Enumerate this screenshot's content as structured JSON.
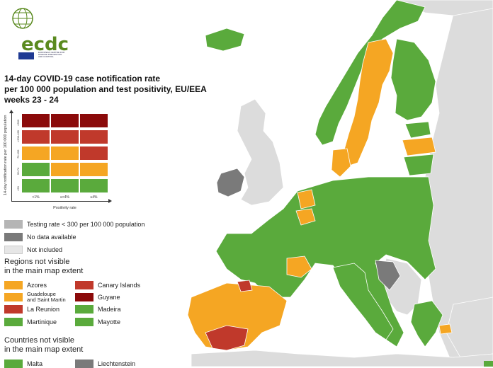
{
  "header": {
    "org": "ecdc",
    "org_sub": "EUROPEAN CENTRE FOR DISEASE PREVENTION AND CONTROL"
  },
  "title": {
    "line1": "14-day COVID-19 case notification rate",
    "line2": "per 100 000 population and test positivity, EU/EEA",
    "line3": "weeks 23 - 24"
  },
  "matrix": {
    "y_label": "14-day notification rate per 100 000 population",
    "y_ticks": [
      ">500",
      ">200-499",
      "75-199",
      "50-74",
      "<50"
    ],
    "x_ticks": [
      "<1%",
      "≥<4%",
      "≥4%"
    ],
    "x_label": "Positivity rate",
    "rows": [
      [
        "#8b0a0a",
        "#8b0a0a",
        "#8b0a0a"
      ],
      [
        "#c0392b",
        "#c0392b",
        "#c0392b"
      ],
      [
        "#f5a623",
        "#f5a623",
        "#c0392b"
      ],
      [
        "#5aaa3c",
        "#f5a623",
        "#f5a623"
      ],
      [
        "#5aaa3c",
        "#5aaa3c",
        "#5aaa3c"
      ]
    ]
  },
  "legend": {
    "testing_rate": "Testing rate < 300 per 100 000 population",
    "no_data": "No data available",
    "not_included": "Not included",
    "regions_head_1": "Regions not visible",
    "regions_head_2": "in the main map extent",
    "regions": [
      {
        "name": "Azores",
        "color": "#f5a623"
      },
      {
        "name": "Canary Islands",
        "color": "#c0392b"
      },
      {
        "name": "Guadeloupe",
        "name2": "and Saint Martin",
        "color": "#f5a623"
      },
      {
        "name": "Guyane",
        "color": "#8b0a0a"
      },
      {
        "name": "La Reunion",
        "color": "#c0392b"
      },
      {
        "name": "Madeira",
        "color": "#5aaa3c"
      },
      {
        "name": "Martinique",
        "color": "#5aaa3c"
      },
      {
        "name": "Mayotte",
        "color": "#5aaa3c"
      }
    ],
    "countries_head_1": "Countries not visible",
    "countries_head_2": "in the main map extent",
    "countries": [
      {
        "name": "Malta",
        "color": "#5aaa3c"
      },
      {
        "name": "Liechtenstein",
        "color": "#7a7a7a"
      }
    ]
  },
  "colors": {
    "green": "#5aaa3c",
    "orange": "#f5a623",
    "red": "#c0392b",
    "darkred": "#8b0a0a",
    "gray_testing": "#b5b5b5",
    "gray_nodata": "#7a7a7a",
    "gray_not_included": "#e6e6e6"
  }
}
